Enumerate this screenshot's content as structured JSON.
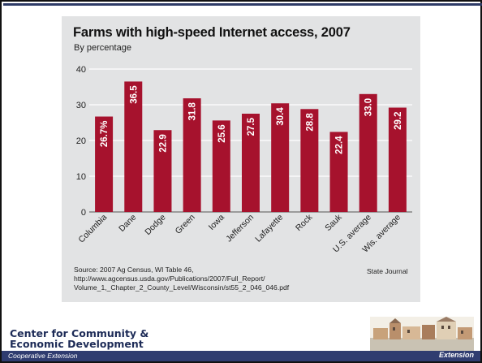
{
  "chart_data": {
    "type": "bar",
    "title": "Farms with high-speed Internet access, 2007",
    "subtitle": "By percentage",
    "categories": [
      "Columbia",
      "Dane",
      "Dodge",
      "Green",
      "Iowa",
      "Jefferson",
      "Lafayette",
      "Rock",
      "Sauk",
      "U.S. average",
      "Wis. average"
    ],
    "values": [
      26.7,
      36.5,
      22.9,
      31.8,
      25.6,
      27.5,
      30.4,
      28.8,
      22.4,
      33.0,
      29.2
    ],
    "data_labels": [
      "26.7%",
      "36.5",
      "22.9",
      "31.8",
      "25.6",
      "27.5",
      "30.4",
      "28.8",
      "22.4",
      "33.0",
      "29.2"
    ],
    "ylim": [
      0,
      40
    ],
    "yticks": [
      0,
      10,
      20,
      30,
      40
    ],
    "xlabel": "",
    "ylabel": "",
    "grid": true,
    "bar_color": "#a6122d"
  },
  "source": {
    "text": "Source: 2007 Ag Census, WI Table 46,\nhttp://www.agcensus.usda.gov/Publications/2007/Full_Report/\nVolume_1,_Chapter_2_County_Level/Wisconsin/st55_2_046_046.pdf",
    "credit": "State Journal"
  },
  "footer": {
    "logo_line1": "Center for Community &",
    "logo_line2": "Economic Development",
    "org": "Cooperative Extension",
    "brand": "Extension",
    "bar_color": "#2f3c70"
  }
}
